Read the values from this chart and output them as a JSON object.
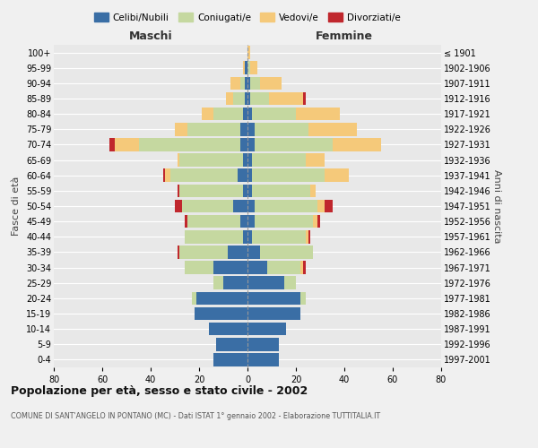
{
  "age_groups": [
    "0-4",
    "5-9",
    "10-14",
    "15-19",
    "20-24",
    "25-29",
    "30-34",
    "35-39",
    "40-44",
    "45-49",
    "50-54",
    "55-59",
    "60-64",
    "65-69",
    "70-74",
    "75-79",
    "80-84",
    "85-89",
    "90-94",
    "95-99",
    "100+"
  ],
  "birth_years": [
    "1997-2001",
    "1992-1996",
    "1987-1991",
    "1982-1986",
    "1977-1981",
    "1972-1976",
    "1967-1971",
    "1962-1966",
    "1957-1961",
    "1952-1956",
    "1947-1951",
    "1942-1946",
    "1937-1941",
    "1932-1936",
    "1927-1931",
    "1922-1926",
    "1917-1921",
    "1912-1916",
    "1907-1911",
    "1902-1906",
    "≤ 1901"
  ],
  "colors": {
    "celibi": "#3a6ea5",
    "coniugati": "#c5d8a0",
    "vedovi": "#f5c97a",
    "divorziati": "#c0272d"
  },
  "maschi": {
    "celibi": [
      14,
      13,
      16,
      22,
      21,
      10,
      14,
      8,
      2,
      3,
      6,
      2,
      4,
      2,
      3,
      3,
      2,
      1,
      1,
      1,
      0
    ],
    "coniugati": [
      0,
      0,
      0,
      0,
      2,
      4,
      12,
      20,
      24,
      22,
      21,
      26,
      28,
      26,
      42,
      22,
      12,
      5,
      2,
      0,
      0
    ],
    "vedovi": [
      0,
      0,
      0,
      0,
      0,
      0,
      0,
      0,
      0,
      0,
      0,
      0,
      2,
      1,
      10,
      5,
      5,
      3,
      4,
      1,
      0
    ],
    "divorziati": [
      0,
      0,
      0,
      0,
      0,
      0,
      0,
      1,
      0,
      1,
      3,
      1,
      1,
      0,
      2,
      0,
      0,
      0,
      0,
      0,
      0
    ]
  },
  "femmine": {
    "celibi": [
      13,
      13,
      16,
      22,
      22,
      15,
      8,
      5,
      2,
      3,
      3,
      2,
      2,
      2,
      3,
      3,
      2,
      1,
      1,
      0,
      0
    ],
    "coniugati": [
      0,
      0,
      0,
      0,
      2,
      5,
      14,
      22,
      22,
      24,
      26,
      24,
      30,
      22,
      32,
      22,
      18,
      8,
      4,
      1,
      0
    ],
    "vedovi": [
      0,
      0,
      0,
      0,
      0,
      0,
      1,
      0,
      1,
      2,
      3,
      2,
      10,
      8,
      20,
      20,
      18,
      14,
      9,
      3,
      1
    ],
    "divorziati": [
      0,
      0,
      0,
      0,
      0,
      0,
      1,
      0,
      1,
      1,
      3,
      0,
      0,
      0,
      0,
      0,
      0,
      1,
      0,
      0,
      0
    ]
  },
  "xlim": 80,
  "title": "Popolazione per età, sesso e stato civile - 2002",
  "subtitle": "COMUNE DI SANT'ANGELO IN PONTANO (MC) - Dati ISTAT 1° gennaio 2002 - Elaborazione TUTTITALIA.IT",
  "ylabel_left": "Fasce di età",
  "ylabel_right": "Anni di nascita",
  "xlabel_maschi": "Maschi",
  "xlabel_femmine": "Femmine",
  "legend_labels": [
    "Celibi/Nubili",
    "Coniugati/e",
    "Vedovi/e",
    "Divorziati/e"
  ],
  "bg_color": "#f0f0f0",
  "plot_bg": "#e8e8e8"
}
